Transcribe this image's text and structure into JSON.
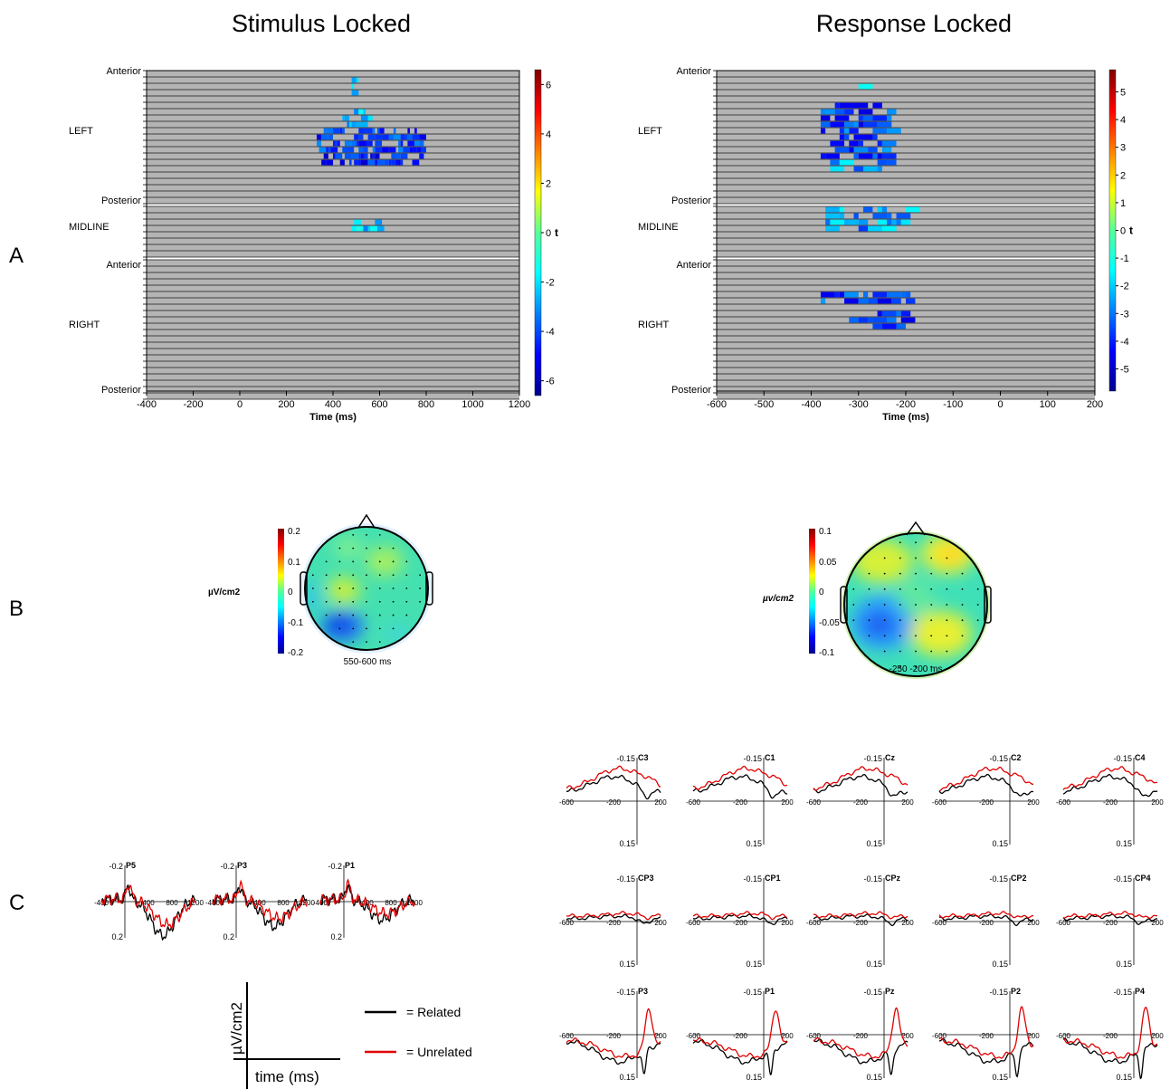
{
  "headers": {
    "stimulus": "Stimulus Locked",
    "response": "Response Locked"
  },
  "panel_letters": [
    "A",
    "B",
    "C"
  ],
  "colors": {
    "grid_bg": "#b4b4b4",
    "grid_line": "#1a1a1a",
    "related": "#000000",
    "unrelated": "#e00000"
  },
  "chart_data": [
    {
      "id": "A-stimulus",
      "type": "heatmap",
      "xlabel": "Time (ms)",
      "x_ticks": [
        -400,
        -200,
        0,
        200,
        400,
        600,
        800,
        1000,
        1200
      ],
      "xlim": [
        -400,
        1200
      ],
      "row_labels": [
        "Anterior",
        "LEFT",
        "Posterior",
        "MIDLINE",
        "Anterior",
        "RIGHT",
        "Posterior"
      ],
      "colorbar": {
        "label": "t",
        "ticks": [
          6,
          4,
          2,
          0,
          -2,
          -4,
          -6
        ],
        "range": [
          -6.6,
          6.6
        ]
      },
      "significant_clusters": [
        {
          "region": "left",
          "rows": [
            2,
            4
          ],
          "time_ms": [
            480,
            510
          ],
          "t": -2.0
        },
        {
          "region": "left",
          "rows": [
            7,
            9
          ],
          "time_ms": [
            440,
            560
          ],
          "t": -2.5
        },
        {
          "region": "left",
          "rows": [
            10,
            13
          ],
          "time_ms": [
            330,
            800
          ],
          "t": -4.2
        },
        {
          "region": "left",
          "rows": [
            14,
            15
          ],
          "time_ms": [
            350,
            800
          ],
          "t": -4.6
        },
        {
          "region": "midline",
          "rows": [
            3,
            4
          ],
          "time_ms": [
            480,
            620
          ],
          "t": -2.2
        }
      ]
    },
    {
      "id": "A-response",
      "type": "heatmap",
      "xlabel": "Time (ms)",
      "x_ticks": [
        -600,
        -500,
        -400,
        -300,
        -200,
        -100,
        0,
        100,
        200
      ],
      "xlim": [
        -600,
        200
      ],
      "row_labels": [
        "Anterior",
        "LEFT",
        "Posterior",
        "MIDLINE",
        "Anterior",
        "RIGHT",
        "Posterior"
      ],
      "colorbar": {
        "label": "t",
        "ticks": [
          5,
          4,
          3,
          2,
          1,
          0,
          -1,
          -2,
          -3,
          -4,
          -5
        ],
        "range": [
          -5.8,
          5.8
        ]
      },
      "significant_clusters": [
        {
          "region": "left",
          "rows": [
            3,
            4
          ],
          "time_ms": [
            -300,
            -290
          ],
          "t": -2.2
        },
        {
          "region": "left",
          "rows": [
            6,
            14
          ],
          "time_ms": [
            -380,
            -230
          ],
          "t": -3.6
        },
        {
          "region": "left",
          "rows": [
            15,
            16
          ],
          "time_ms": [
            -360,
            -230
          ],
          "t": -2.4
        },
        {
          "region": "midline",
          "rows": [
            1,
            4
          ],
          "time_ms": [
            -370,
            -190
          ],
          "t": -2.6
        },
        {
          "region": "right",
          "rows": [
            6,
            7
          ],
          "time_ms": [
            -380,
            -190
          ],
          "t": -3.6
        },
        {
          "region": "right",
          "rows": [
            9,
            11
          ],
          "time_ms": [
            -330,
            -200
          ],
          "t": -3.8
        }
      ]
    },
    {
      "id": "B-stimulus",
      "type": "heatmap",
      "title": "550-600 ms",
      "unit_label": "µV/cm2",
      "colorbar_ticks": [
        "0.2",
        "0.1",
        "0",
        "-0.1",
        "-0.2"
      ],
      "range": [
        -0.2,
        0.2
      ]
    },
    {
      "id": "B-response",
      "type": "heatmap",
      "title": "-250 -200 ms",
      "unit_label": "µv/cm2",
      "colorbar_ticks": [
        "0.1",
        "0.05",
        "0",
        "-0.05",
        "-0.1"
      ],
      "range": [
        -0.1,
        0.1
      ]
    },
    {
      "id": "C-stimulus",
      "type": "line",
      "xlim": [
        -400,
        1200
      ],
      "x_ticks": [
        "-400",
        "400",
        "800",
        "1200"
      ],
      "y_ticks": [
        "-0.2",
        "0.2"
      ],
      "series": [
        {
          "name": "Related"
        },
        {
          "name": "Unrelated"
        }
      ],
      "electrodes": [
        "P5",
        "P3",
        "P1"
      ]
    },
    {
      "id": "C-response",
      "type": "line",
      "xlim": [
        -600,
        200
      ],
      "x_ticks": [
        "-600",
        "-200",
        "200"
      ],
      "y_ticks": [
        "-0.15",
        "0.15"
      ],
      "series": [
        {
          "name": "Related"
        },
        {
          "name": "Unrelated"
        }
      ],
      "electrodes": [
        "C3",
        "C1",
        "Cz",
        "C2",
        "C4",
        "CP3",
        "CP1",
        "CPz",
        "CP2",
        "CP4",
        "P3",
        "P1",
        "Pz",
        "P2",
        "P4"
      ]
    }
  ],
  "legend": {
    "y_label": "µV/cm2",
    "x_label": "time (ms)",
    "items": [
      {
        "label": "= Related",
        "color": "#000000"
      },
      {
        "label": "= Unrelated",
        "color": "#e00000"
      }
    ]
  }
}
